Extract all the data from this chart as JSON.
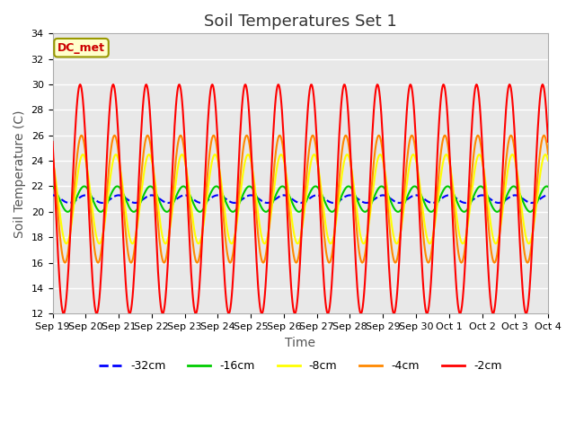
{
  "title": "Soil Temperatures Set 1",
  "xlabel": "Time",
  "ylabel": "Soil Temperature (C)",
  "ylim": [
    12,
    34
  ],
  "bg_color": "#e8e8e8",
  "dc_met_label": "DC_met",
  "legend_labels": [
    "-32cm",
    "-16cm",
    "-8cm",
    "-4cm",
    "-2cm"
  ],
  "legend_colors": [
    "#0000ff",
    "#00cc00",
    "#ffff00",
    "#ff8800",
    "#ff0000"
  ],
  "line_dashed": [
    true,
    false,
    false,
    false,
    false
  ],
  "xtick_labels": [
    "Sep 19",
    "Sep 20",
    "Sep 21",
    "Sep 22",
    "Sep 23",
    "Sep 24",
    "Sep 25",
    "Sep 26",
    "Sep 27",
    "Sep 28",
    "Sep 29",
    "Sep 30",
    "Oct 1",
    "Oct 2",
    "Oct 3",
    "Oct 4"
  ],
  "n_days": 15,
  "base_temp_32": 21.0,
  "base_temp_16": 21.0,
  "base_temp_8": 21.0,
  "base_temp_4": 21.0,
  "base_temp_2": 21.0,
  "amp_32": 0.3,
  "amp_16": 1.0,
  "amp_8": 3.5,
  "amp_4": 5.0,
  "amp_2": 9.0,
  "title_fontsize": 13,
  "axis_label_fontsize": 10,
  "tick_fontsize": 8
}
